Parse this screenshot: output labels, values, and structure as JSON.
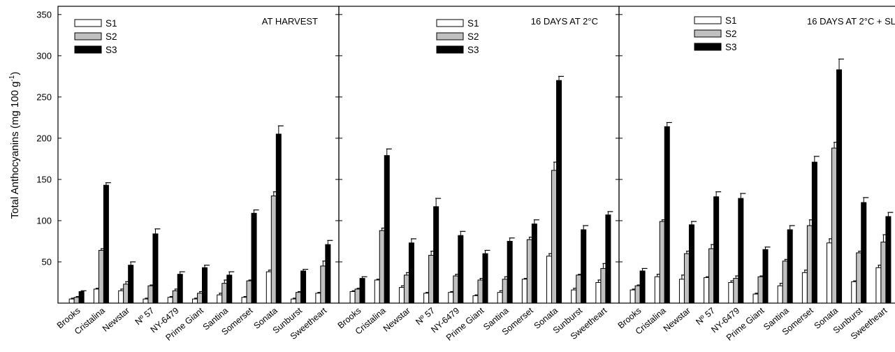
{
  "chart_data": {
    "type": "bar",
    "ylabel_main": "Total Anthocyanins (mg 100 g",
    "ylabel_sup": "-1",
    "ylabel_close": ")",
    "ylim": [
      0,
      360
    ],
    "yticks": [
      "50",
      "100",
      "150",
      "200",
      "250",
      "300",
      "350"
    ],
    "ytick_values": [
      50,
      100,
      150,
      200,
      250,
      300,
      350
    ],
    "categories": [
      "Brooks",
      "Cristalina",
      "Newstar",
      "Nº 57",
      "NY-6479",
      "Prime Giant",
      "Santina",
      "Somerset",
      "Sonata",
      "Sunburst",
      "Sweetheart"
    ],
    "series_names": [
      "S1",
      "S2",
      "S3"
    ],
    "series_colors": [
      "#ffffff",
      "#c0c0c0",
      "#000000"
    ],
    "legend_placement": "top-left",
    "grid": false,
    "panels": [
      {
        "title": "AT HARVEST",
        "series": [
          {
            "name": "S1",
            "values": [
              5,
              17,
              15,
              5,
              7,
              5,
              10,
              7,
              38,
              5,
              12
            ],
            "errors": [
              1,
              1,
              2,
              1,
              1,
              1,
              2,
              1,
              2,
              1,
              1
            ]
          },
          {
            "name": "S2",
            "values": [
              7,
              64,
              23,
              21,
              15,
              12,
              24,
              27,
              130,
              13,
              45
            ],
            "errors": [
              1,
              2,
              3,
              1,
              2,
              2,
              4,
              1,
              5,
              1,
              6
            ]
          },
          {
            "name": "S3",
            "values": [
              14,
              143,
              46,
              84,
              35,
              43,
              34,
              109,
              205,
              39,
              71
            ],
            "errors": [
              1,
              3,
              4,
              6,
              3,
              3,
              4,
              4,
              10,
              2,
              5
            ]
          }
        ]
      },
      {
        "title": "16 DAYS AT 2°C",
        "series": [
          {
            "name": "S1",
            "values": [
              14,
              28,
              19,
              12,
              13,
              9,
              13,
              29,
              57,
              16,
              25
            ],
            "errors": [
              1,
              1,
              2,
              1,
              1,
              1,
              2,
              1,
              3,
              2,
              3
            ]
          },
          {
            "name": "S2",
            "values": [
              17,
              88,
              34,
              58,
              33,
              28,
              29,
              77,
              161,
              34,
              42
            ],
            "errors": [
              1,
              3,
              3,
              5,
              2,
              2,
              3,
              3,
              10,
              1,
              6
            ]
          },
          {
            "name": "S3",
            "values": [
              30,
              179,
              73,
              117,
              82,
              60,
              75,
              96,
              270,
              89,
              107
            ],
            "errors": [
              2,
              8,
              5,
              10,
              5,
              4,
              4,
              5,
              5,
              5,
              4
            ]
          }
        ]
      },
      {
        "title": "16 DAYS AT 2°C + SL",
        "series": [
          {
            "name": "S1",
            "values": [
              16,
              32,
              29,
              31,
              25,
              11,
              21,
              37,
              73,
              26,
              43
            ],
            "errors": [
              1,
              3,
              5,
              1,
              2,
              1,
              3,
              3,
              5,
              1,
              3
            ]
          },
          {
            "name": "S2",
            "values": [
              21,
              99,
              60,
              66,
              30,
              32,
              51,
              94,
              188,
              61,
              74
            ],
            "errors": [
              1,
              2,
              3,
              5,
              3,
              1,
              2,
              7,
              7,
              2,
              9
            ]
          },
          {
            "name": "S3",
            "values": [
              39,
              214,
              95,
              129,
              127,
              65,
              89,
              171,
              283,
              122,
              105
            ],
            "errors": [
              3,
              5,
              4,
              6,
              6,
              3,
              5,
              7,
              13,
              6,
              5
            ]
          }
        ]
      }
    ]
  }
}
